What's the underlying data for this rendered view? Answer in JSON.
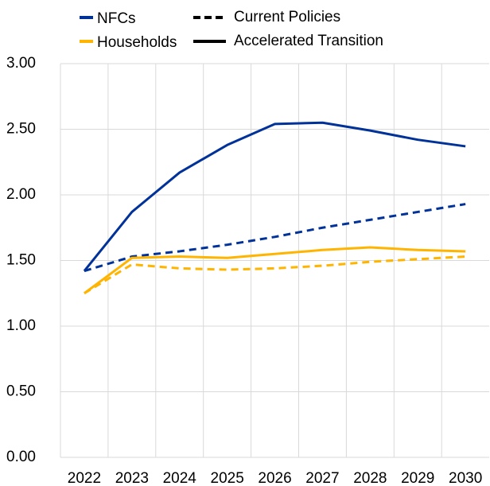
{
  "chart_data": {
    "type": "line",
    "legend": {
      "sectors": [
        {
          "name": "NFCs",
          "color": "#003299"
        },
        {
          "name": "Households",
          "color": "#ffb400"
        }
      ],
      "scenarios": [
        {
          "name": "Current Policies",
          "dashed": true
        },
        {
          "name": "Accelerated Transition",
          "dashed": false
        }
      ]
    },
    "categories": [
      "2022",
      "2023",
      "2024",
      "2025",
      "2026",
      "2027",
      "2028",
      "2029",
      "2030"
    ],
    "series": [
      {
        "color": "#003299",
        "dashed": false,
        "values": [
          1.42,
          1.87,
          2.17,
          2.38,
          2.54,
          2.55,
          2.49,
          2.42,
          2.37
        ]
      },
      {
        "color": "#003299",
        "dashed": true,
        "values": [
          1.42,
          1.53,
          1.57,
          1.62,
          1.68,
          1.75,
          1.81,
          1.87,
          1.93
        ]
      },
      {
        "color": "#ffb400",
        "dashed": false,
        "values": [
          1.25,
          1.52,
          1.53,
          1.52,
          1.55,
          1.58,
          1.6,
          1.58,
          1.57
        ]
      },
      {
        "color": "#ffb400",
        "dashed": true,
        "values": [
          1.25,
          1.47,
          1.44,
          1.43,
          1.44,
          1.46,
          1.49,
          1.51,
          1.53
        ]
      }
    ],
    "ylim": [
      0,
      3
    ],
    "yticks": [
      {
        "value": 0,
        "label": "0.00"
      },
      {
        "value": 0.5,
        "label": "0.50"
      },
      {
        "value": 1,
        "label": "1.00"
      },
      {
        "value": 1.5,
        "label": "1.50"
      },
      {
        "value": 2,
        "label": "2.00"
      },
      {
        "value": 2.5,
        "label": "2.50"
      },
      {
        "value": 3,
        "label": "3.00"
      }
    ],
    "grid": true
  }
}
